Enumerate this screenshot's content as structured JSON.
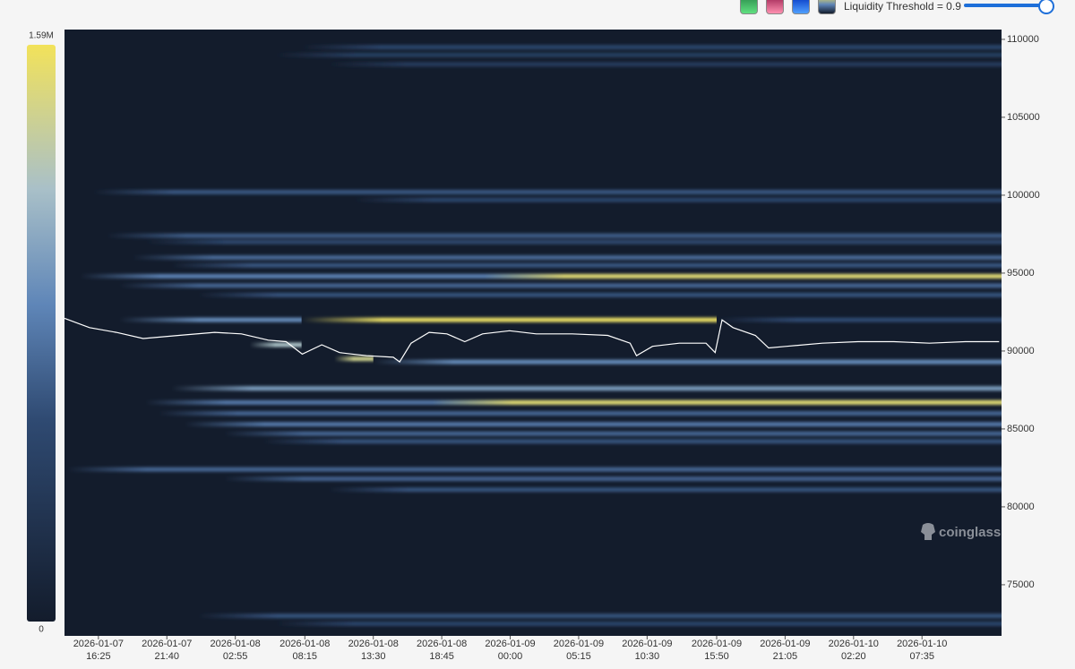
{
  "controls": {
    "threshold_label": "Liquidity Threshold = 0.9"
  },
  "chart_data": {
    "type": "heatmap",
    "watermark": "coinglass",
    "background": "#131c2c",
    "ylim": [
      71720,
      110630
    ],
    "yticks": [
      75000,
      80000,
      85000,
      90000,
      95000,
      100000,
      105000,
      110000
    ],
    "xlim": [
      "2026-01-07 13:49",
      "2026-01-10 13:41"
    ],
    "xticks": [
      "2026-01-07 16:25",
      "2026-01-07 21:40",
      "2026-01-08 02:55",
      "2026-01-08 08:15",
      "2026-01-08 13:30",
      "2026-01-08 18:45",
      "2026-01-09 00:00",
      "2026-01-09 05:15",
      "2026-01-09 10:30",
      "2026-01-09 15:50",
      "2026-01-09 21:05",
      "2026-01-10 02:20",
      "2026-01-10 07:35"
    ],
    "zlim": [
      0,
      1590000
    ],
    "zticks": [
      0,
      {
        "value": 1590000,
        "label": "1.59M"
      }
    ],
    "bands": [
      {
        "price": 109500,
        "start": "2026-01-08 08:00",
        "end": "2026-01-10 13:41",
        "value": 500000
      },
      {
        "price": 109000,
        "start": "2026-01-08 06:00",
        "end": "2026-01-10 13:41",
        "value": 420000
      },
      {
        "price": 108400,
        "start": "2026-01-08 10:00",
        "end": "2026-01-10 13:41",
        "value": 380000
      },
      {
        "price": 100200,
        "start": "2026-01-07 16:00",
        "end": "2026-01-10 13:41",
        "value": 620000
      },
      {
        "price": 99700,
        "start": "2026-01-08 12:00",
        "end": "2026-01-10 13:41",
        "value": 500000
      },
      {
        "price": 97400,
        "start": "2026-01-07 17:00",
        "end": "2026-01-10 13:41",
        "value": 650000
      },
      {
        "price": 97000,
        "start": "2026-01-07 20:00",
        "end": "2026-01-10 13:41",
        "value": 520000
      },
      {
        "price": 96000,
        "start": "2026-01-07 19:00",
        "end": "2026-01-10 13:41",
        "value": 720000
      },
      {
        "price": 95500,
        "start": "2026-01-07 22:00",
        "end": "2026-01-10 13:41",
        "value": 620000
      },
      {
        "price": 94800,
        "start": "2026-01-07 15:00",
        "end": "2026-01-10 13:41",
        "value": 850000
      },
      {
        "price": 94800,
        "start": "2026-01-08 22:00",
        "end": "2026-01-10 13:41",
        "value": 1500000
      },
      {
        "price": 94200,
        "start": "2026-01-07 18:00",
        "end": "2026-01-10 13:41",
        "value": 700000
      },
      {
        "price": 93600,
        "start": "2026-01-08 00:00",
        "end": "2026-01-10 13:41",
        "value": 600000
      },
      {
        "price": 92000,
        "start": "2026-01-07 18:00",
        "end": "2026-01-08 08:00",
        "value": 900000
      },
      {
        "price": 92000,
        "start": "2026-01-08 08:00",
        "end": "2026-01-09 15:50",
        "value": 1550000
      },
      {
        "price": 92000,
        "start": "2026-01-09 15:50",
        "end": "2026-01-10 13:41",
        "value": 550000
      },
      {
        "price": 90400,
        "start": "2026-01-08 04:00",
        "end": "2026-01-08 08:00",
        "value": 1200000
      },
      {
        "price": 89500,
        "start": "2026-01-08 10:30",
        "end": "2026-01-08 13:30",
        "value": 1400000
      },
      {
        "price": 89300,
        "start": "2026-01-08 13:30",
        "end": "2026-01-10 13:41",
        "value": 900000
      },
      {
        "price": 87600,
        "start": "2026-01-07 22:00",
        "end": "2026-01-10 13:41",
        "value": 1000000
      },
      {
        "price": 86700,
        "start": "2026-01-07 20:00",
        "end": "2026-01-10 13:41",
        "value": 800000
      },
      {
        "price": 86700,
        "start": "2026-01-08 18:00",
        "end": "2026-01-10 13:41",
        "value": 1500000
      },
      {
        "price": 86000,
        "start": "2026-01-07 21:00",
        "end": "2026-01-10 13:41",
        "value": 700000
      },
      {
        "price": 85300,
        "start": "2026-01-07 23:00",
        "end": "2026-01-10 13:41",
        "value": 800000
      },
      {
        "price": 84700,
        "start": "2026-01-08 02:00",
        "end": "2026-01-10 13:41",
        "value": 700000
      },
      {
        "price": 84200,
        "start": "2026-01-08 05:00",
        "end": "2026-01-10 13:41",
        "value": 600000
      },
      {
        "price": 82400,
        "start": "2026-01-07 14:00",
        "end": "2026-01-10 13:41",
        "value": 700000
      },
      {
        "price": 81800,
        "start": "2026-01-08 02:00",
        "end": "2026-01-10 13:41",
        "value": 680000
      },
      {
        "price": 81100,
        "start": "2026-01-08 10:00",
        "end": "2026-01-10 13:41",
        "value": 600000
      },
      {
        "price": 73000,
        "start": "2026-01-08 00:00",
        "end": "2026-01-10 13:41",
        "value": 600000
      },
      {
        "price": 72500,
        "start": "2026-01-08 06:00",
        "end": "2026-01-10 13:41",
        "value": 500000
      }
    ],
    "price_line": {
      "color": "#ffffff",
      "x": [
        "2026-01-07 13:49",
        "2026-01-07 15:44",
        "2026-01-07 17:47",
        "2026-01-07 19:51",
        "2026-01-07 22:35",
        "2026-01-08 01:20",
        "2026-01-08 03:23",
        "2026-01-08 05:27",
        "2026-01-08 06:49",
        "2026-01-08 08:03",
        "2026-01-08 09:33",
        "2026-01-08 10:55",
        "2026-01-08 12:59",
        "2026-01-08 15:02",
        "2026-01-08 15:31",
        "2026-01-08 16:24",
        "2026-01-08 17:47",
        "2026-01-08 19:09",
        "2026-01-08 20:31",
        "2026-01-08 21:53",
        "2026-01-08 23:57",
        "2026-01-09 02:00",
        "2026-01-09 04:45",
        "2026-01-09 07:29",
        "2026-01-09 09:12",
        "2026-01-09 09:41",
        "2026-01-09 10:55",
        "2026-01-09 12:58",
        "2026-01-09 15:01",
        "2026-01-09 15:43",
        "2026-01-09 16:15",
        "2026-01-09 17:05",
        "2026-01-09 18:48",
        "2026-01-09 19:49",
        "2026-01-09 21:12",
        "2026-01-09 23:56",
        "2026-01-10 02:40",
        "2026-01-10 05:25",
        "2026-01-10 08:09",
        "2026-01-10 10:54",
        "2026-01-10 13:30"
      ],
      "values": [
        92100,
        91500,
        91200,
        90800,
        91000,
        91200,
        91100,
        90700,
        90600,
        89800,
        90400,
        89900,
        89700,
        89600,
        89300,
        90500,
        91200,
        91100,
        90600,
        91100,
        91300,
        91100,
        91100,
        91000,
        90500,
        89700,
        90300,
        90500,
        90500,
        89900,
        92000,
        91500,
        91000,
        90200,
        90300,
        90500,
        90600,
        90600,
        90500,
        90600,
        90600
      ]
    }
  }
}
